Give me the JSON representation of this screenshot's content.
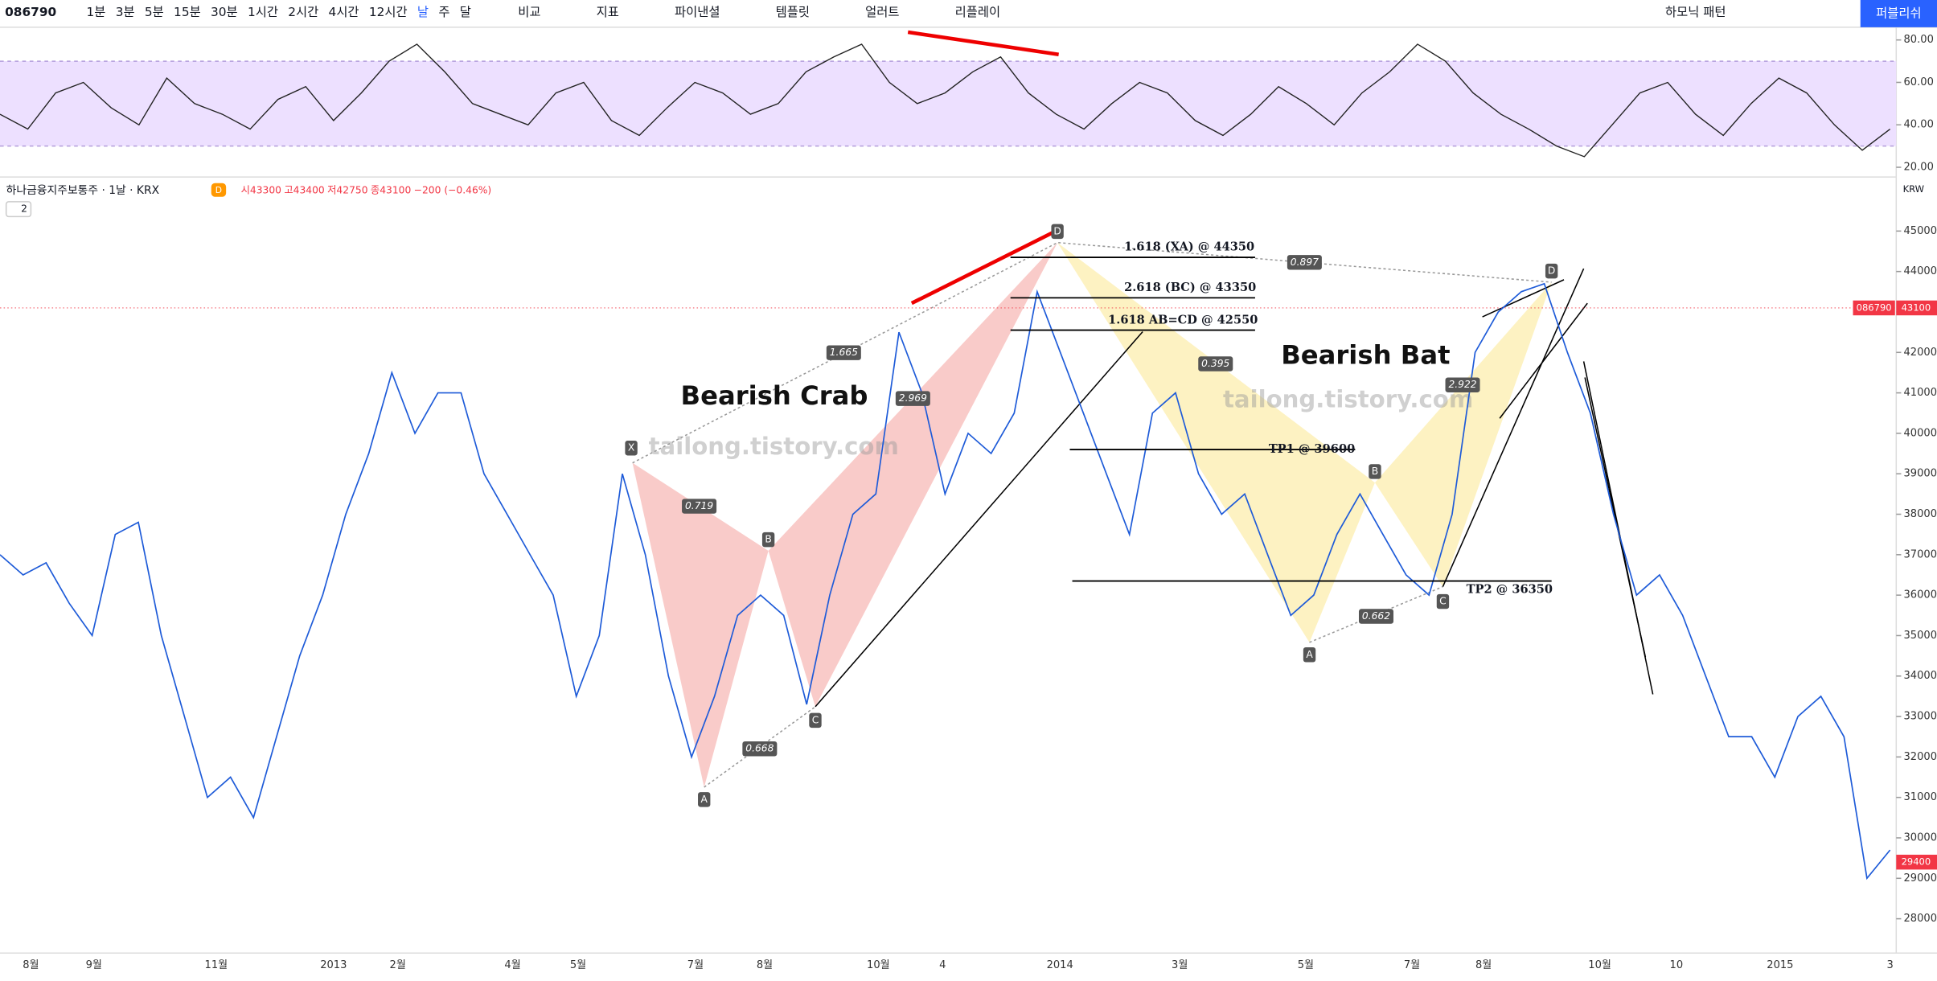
{
  "toolbar": {
    "symbol": "086790",
    "intervals": [
      "1분",
      "3분",
      "5분",
      "15분",
      "30분",
      "1시간",
      "2시간",
      "4시간",
      "12시간",
      "날",
      "주",
      "달"
    ],
    "buttons": [
      "비교",
      "지표",
      "파이낸셜",
      "템플릿",
      "얼러트",
      "리플레이"
    ],
    "harmonic": "하모닉 패턴",
    "publish": "퍼블리쉬"
  },
  "legend": {
    "name": "하나금융지주보통주 · 1날 · KRX",
    "badge": "D",
    "open": "시43300",
    "high": "고43400",
    "low": "저42750",
    "close": "종43100",
    "change": "−200 (−0.46%)",
    "count": "2"
  },
  "rsi": {
    "ylim": [
      16,
      86
    ],
    "band": [
      30,
      70
    ],
    "yticks": [
      {
        "value": 80,
        "label": "80.00"
      },
      {
        "value": 60,
        "label": "60.00"
      },
      {
        "value": 40,
        "label": "40.00"
      },
      {
        "value": 20,
        "label": "20.00"
      }
    ],
    "values": [
      45,
      38,
      55,
      60,
      48,
      40,
      62,
      50,
      45,
      38,
      52,
      58,
      42,
      55,
      70,
      78,
      65,
      50,
      45,
      40,
      55,
      60,
      42,
      35,
      48,
      60,
      55,
      45,
      50,
      65,
      72,
      78,
      60,
      50,
      55,
      65,
      72,
      55,
      45,
      38,
      50,
      60,
      55,
      42,
      35,
      45,
      58,
      50,
      40,
      55,
      65,
      78,
      70,
      55,
      45,
      38,
      30,
      25,
      40,
      55,
      60,
      45,
      35,
      50,
      62,
      55,
      40,
      28,
      38
    ]
  },
  "price": {
    "currency": "KRW",
    "ylim": [
      27000,
      46000
    ],
    "yticks": [
      45000,
      44000,
      43000,
      42000,
      41000,
      40000,
      39000,
      38000,
      37000,
      36000,
      35000,
      34000,
      33000,
      32000,
      31000,
      30000,
      29000,
      28000
    ],
    "last_symbol": "086790",
    "last": {
      "value": 43100,
      "label": "43100"
    },
    "current": {
      "value": 29400,
      "label": "29400"
    },
    "values": [
      37000,
      36500,
      36800,
      35800,
      35000,
      37500,
      37800,
      35000,
      33000,
      31000,
      31500,
      30500,
      32500,
      34500,
      36000,
      38000,
      39500,
      41500,
      40000,
      41000,
      41000,
      39000,
      38000,
      37000,
      36000,
      33500,
      35000,
      39000,
      37000,
      34000,
      32000,
      33500,
      35500,
      36000,
      35500,
      33300,
      36000,
      38000,
      38500,
      42500,
      41000,
      38500,
      40000,
      39500,
      40500,
      43500,
      42000,
      40500,
      39000,
      37500,
      40500,
      41000,
      39000,
      38000,
      38500,
      37000,
      35500,
      36000,
      37500,
      38500,
      37500,
      36500,
      36000,
      38000,
      42000,
      43000,
      43500,
      43700,
      42000,
      40500,
      38000,
      36000,
      36500,
      35500,
      34000,
      32500,
      32500,
      31500,
      33000,
      33500,
      32500,
      29000,
      29700
    ]
  },
  "levels": [
    {
      "value": 44350,
      "label": "1.618 (XA) @ 44350"
    },
    {
      "value": 43350,
      "label": "2.618 (BC) @ 43350"
    },
    {
      "value": 42550,
      "label": "1.618 AB=CD @ 42550"
    },
    {
      "value": 39600,
      "label": "TP1 @ 39600"
    },
    {
      "value": 36350,
      "label": "TP2 @ 36350"
    }
  ],
  "annotations": {
    "crab": "Bearish Crab",
    "bat": "Bearish Bat",
    "watermark": "tailong.tistory.com",
    "ratios": [
      "1.665",
      "2.969",
      "0.719",
      "0.668",
      "0.395",
      "2.922",
      "0.662",
      "0.897"
    ],
    "points": [
      "X",
      "A",
      "B",
      "C",
      "D"
    ]
  },
  "xaxis": [
    "8월",
    "9월",
    "11월",
    "2013",
    "2월",
    "4월",
    "5월",
    "7월",
    "8월",
    "10월",
    "4",
    "2014",
    "3월",
    "5월",
    "7월",
    "8월",
    "10월",
    "10",
    "2015",
    "3"
  ]
}
